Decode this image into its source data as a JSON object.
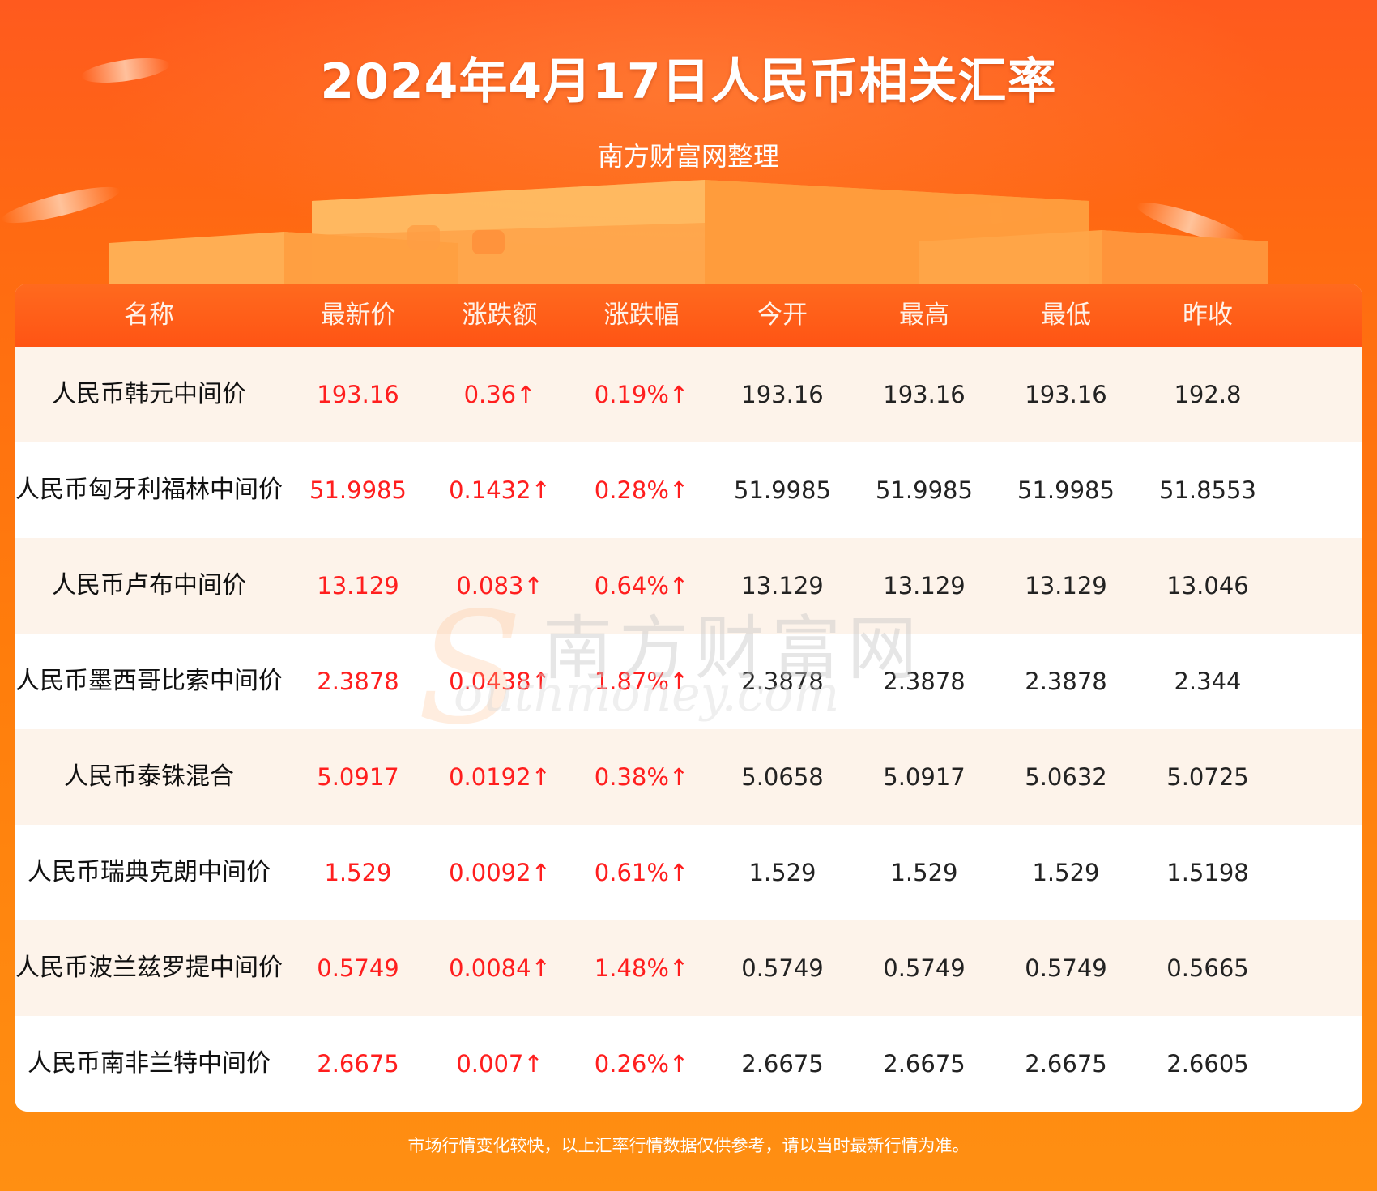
{
  "header": {
    "title": "2024年4月17日人民币相关汇率",
    "subtitle": "南方财富网整理"
  },
  "table": {
    "columns": [
      "名称",
      "最新价",
      "涨跌额",
      "涨跌幅",
      "今开",
      "最高",
      "最低",
      "昨收"
    ],
    "rows": [
      [
        "人民币韩元中间价",
        "193.16",
        "0.36↑",
        "0.19%↑",
        "193.16",
        "193.16",
        "193.16",
        "192.8"
      ],
      [
        "人民币匈牙利福林中间价",
        "51.9985",
        "0.1432↑",
        "0.28%↑",
        "51.9985",
        "51.9985",
        "51.9985",
        "51.8553"
      ],
      [
        "人民币卢布中间价",
        "13.129",
        "0.083↑",
        "0.64%↑",
        "13.129",
        "13.129",
        "13.129",
        "13.046"
      ],
      [
        "人民币墨西哥比索中间价",
        "2.3878",
        "0.0438↑",
        "1.87%↑",
        "2.3878",
        "2.3878",
        "2.3878",
        "2.344"
      ],
      [
        "人民币泰铢混合",
        "5.0917",
        "0.0192↑",
        "0.38%↑",
        "5.0658",
        "5.0917",
        "5.0632",
        "5.0725"
      ],
      [
        "人民币瑞典克朗中间价",
        "1.529",
        "0.0092↑",
        "0.61%↑",
        "1.529",
        "1.529",
        "1.529",
        "1.5198"
      ],
      [
        "人民币波兰兹罗提中间价",
        "0.5749",
        "0.0084↑",
        "1.48%↑",
        "0.5749",
        "0.5749",
        "0.5749",
        "0.5665"
      ],
      [
        "人民币南非兰特中间价",
        "2.6675",
        "0.007↑",
        "0.26%↑",
        "2.6675",
        "2.6675",
        "2.6675",
        "2.6605"
      ]
    ]
  },
  "watermark": {
    "cn": "南方财富网",
    "en": "outhmoney.com",
    "letter": "S"
  },
  "footer": {
    "note": "市场行情变化较快，以上汇率行情数据仅供参考，请以当时最新行情为准。"
  },
  "colors": {
    "rise": "#ff1e1e",
    "header_bg": "#ff5a1e",
    "row_alt": "#fdf3ea"
  }
}
